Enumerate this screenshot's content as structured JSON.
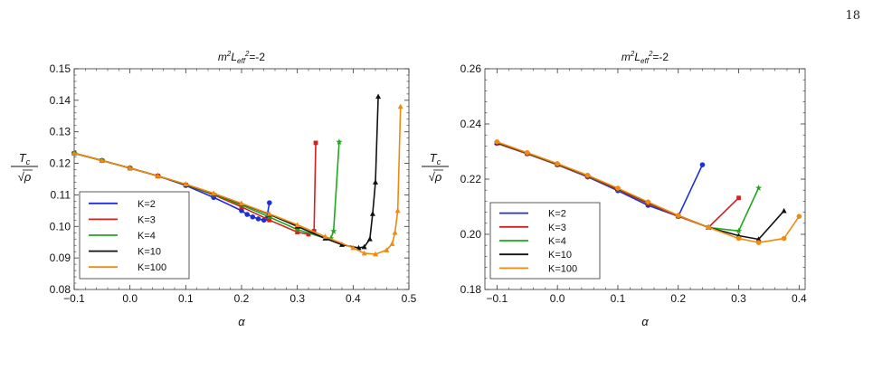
{
  "page": {
    "number": "18"
  },
  "chart_data": [
    {
      "type": "line",
      "title": "m²L_eff²=-2",
      "xlabel": "α",
      "ylabel": "Tc/√ρ",
      "xlim": [
        -0.1,
        0.5
      ],
      "ylim": [
        0.08,
        0.15
      ],
      "x_ticks": [
        -0.1,
        0.0,
        0.1,
        0.2,
        0.3,
        0.4,
        0.5
      ],
      "x_tick_labels": [
        "−0.1",
        "0.0",
        "0.1",
        "0.2",
        "0.3",
        "0.4",
        "0.5"
      ],
      "y_ticks": [
        0.08,
        0.09,
        0.1,
        0.11,
        0.12,
        0.13,
        0.14,
        0.15
      ],
      "y_tick_labels": [
        "0.08",
        "0.09",
        "0.10",
        "0.11",
        "0.12",
        "0.13",
        "0.14",
        "0.15"
      ],
      "grid": false,
      "legend_position": "bottom-left",
      "series": [
        {
          "name": "K=2",
          "color": "#1f2fd6",
          "marker": "circle",
          "points": [
            [
              -0.1,
              0.1232
            ],
            [
              -0.05,
              0.1209
            ],
            [
              0.0,
              0.1185
            ],
            [
              0.05,
              0.116
            ],
            [
              0.1,
              0.113
            ],
            [
              0.15,
              0.1092
            ],
            [
              0.2,
              0.105
            ],
            [
              0.21,
              0.1038
            ],
            [
              0.22,
              0.103
            ],
            [
              0.23,
              0.1024
            ],
            [
              0.24,
              0.102
            ],
            [
              0.245,
              0.1025
            ],
            [
              0.25,
              0.1075
            ]
          ]
        },
        {
          "name": "K=3",
          "color": "#d42020",
          "marker": "square",
          "points": [
            [
              -0.1,
              0.1232
            ],
            [
              -0.05,
              0.1209
            ],
            [
              0.0,
              0.1185
            ],
            [
              0.05,
              0.116
            ],
            [
              0.1,
              0.1132
            ],
            [
              0.15,
              0.11
            ],
            [
              0.2,
              0.1062
            ],
            [
              0.25,
              0.102
            ],
            [
              0.3,
              0.0982
            ],
            [
              0.32,
              0.0975
            ],
            [
              0.33,
              0.0985
            ],
            [
              0.333,
              0.1265
            ]
          ]
        },
        {
          "name": "K=4",
          "color": "#1fa81f",
          "marker": "star",
          "points": [
            [
              -0.1,
              0.1232
            ],
            [
              -0.05,
              0.1209
            ],
            [
              0.0,
              0.1185
            ],
            [
              0.05,
              0.116
            ],
            [
              0.1,
              0.1132
            ],
            [
              0.15,
              0.1102
            ],
            [
              0.2,
              0.1068
            ],
            [
              0.25,
              0.103
            ],
            [
              0.3,
              0.099
            ],
            [
              0.35,
              0.0963
            ],
            [
              0.36,
              0.0962
            ],
            [
              0.365,
              0.0985
            ],
            [
              0.375,
              0.1268
            ]
          ]
        },
        {
          "name": "K=10",
          "color": "#111111",
          "marker": "triangle",
          "points": [
            [
              -0.1,
              0.1232
            ],
            [
              -0.05,
              0.1209
            ],
            [
              0.0,
              0.1185
            ],
            [
              0.05,
              0.116
            ],
            [
              0.1,
              0.1133
            ],
            [
              0.15,
              0.1104
            ],
            [
              0.2,
              0.1072
            ],
            [
              0.25,
              0.1038
            ],
            [
              0.3,
              0.1
            ],
            [
              0.35,
              0.0962
            ],
            [
              0.38,
              0.0942
            ],
            [
              0.41,
              0.0932
            ],
            [
              0.42,
              0.0935
            ],
            [
              0.43,
              0.096
            ],
            [
              0.435,
              0.104
            ],
            [
              0.44,
              0.114
            ],
            [
              0.445,
              0.1412
            ]
          ]
        },
        {
          "name": "K=100",
          "color": "#f08a10",
          "marker": "triangle",
          "points": [
            [
              -0.1,
              0.1232
            ],
            [
              -0.05,
              0.1209
            ],
            [
              0.0,
              0.1185
            ],
            [
              0.05,
              0.116
            ],
            [
              0.1,
              0.1134
            ],
            [
              0.15,
              0.1105
            ],
            [
              0.2,
              0.1073
            ],
            [
              0.25,
              0.104
            ],
            [
              0.3,
              0.1005
            ],
            [
              0.35,
              0.0968
            ],
            [
              0.4,
              0.0932
            ],
            [
              0.42,
              0.0915
            ],
            [
              0.44,
              0.0912
            ],
            [
              0.46,
              0.0925
            ],
            [
              0.47,
              0.0945
            ],
            [
              0.475,
              0.098
            ],
            [
              0.48,
              0.105
            ],
            [
              0.485,
              0.138
            ]
          ]
        }
      ]
    },
    {
      "type": "line",
      "title": "m²L_eff²=-2",
      "xlabel": "α",
      "ylabel": "Tc/√ρ",
      "xlim": [
        -0.12,
        0.41
      ],
      "ylim": [
        0.18,
        0.26
      ],
      "x_ticks": [
        -0.1,
        0.0,
        0.1,
        0.2,
        0.3,
        0.4
      ],
      "x_tick_labels": [
        "−0.1",
        "0.0",
        "0.1",
        "0.2",
        "0.3",
        "0.4"
      ],
      "y_ticks": [
        0.18,
        0.2,
        0.22,
        0.24,
        0.26
      ],
      "y_tick_labels": [
        "0.18",
        "0.20",
        "0.22",
        "0.24",
        "0.26"
      ],
      "grid": false,
      "legend_position": "bottom-left",
      "series": [
        {
          "name": "K=2",
          "color": "#1f2fd6",
          "marker": "circle",
          "points": [
            [
              -0.1,
              0.233
            ],
            [
              -0.05,
              0.2292
            ],
            [
              0.0,
              0.2252
            ],
            [
              0.05,
              0.2208
            ],
            [
              0.1,
              0.2158
            ],
            [
              0.15,
              0.2105
            ],
            [
              0.2,
              0.2065
            ],
            [
              0.24,
              0.2252
            ]
          ]
        },
        {
          "name": "K=3",
          "color": "#d42020",
          "marker": "square",
          "points": [
            [
              -0.1,
              0.233
            ],
            [
              -0.05,
              0.2292
            ],
            [
              0.0,
              0.2252
            ],
            [
              0.05,
              0.221
            ],
            [
              0.1,
              0.2162
            ],
            [
              0.15,
              0.2112
            ],
            [
              0.2,
              0.2065
            ],
            [
              0.25,
              0.2025
            ],
            [
              0.3,
              0.2132
            ]
          ]
        },
        {
          "name": "K=4",
          "color": "#1fa81f",
          "marker": "star",
          "points": [
            [
              -0.1,
              0.2332
            ],
            [
              -0.05,
              0.2294
            ],
            [
              0.0,
              0.2254
            ],
            [
              0.05,
              0.2212
            ],
            [
              0.1,
              0.2165
            ],
            [
              0.15,
              0.2115
            ],
            [
              0.2,
              0.2068
            ],
            [
              0.25,
              0.2025
            ],
            [
              0.3,
              0.2012
            ],
            [
              0.333,
              0.2168
            ]
          ]
        },
        {
          "name": "K=10",
          "color": "#111111",
          "marker": "triangle",
          "points": [
            [
              -0.1,
              0.2333
            ],
            [
              -0.05,
              0.2295
            ],
            [
              0.0,
              0.2255
            ],
            [
              0.05,
              0.2213
            ],
            [
              0.1,
              0.2166
            ],
            [
              0.15,
              0.2116
            ],
            [
              0.2,
              0.2068
            ],
            [
              0.25,
              0.2025
            ],
            [
              0.3,
              0.1995
            ],
            [
              0.333,
              0.1982
            ],
            [
              0.375,
              0.2085
            ]
          ]
        },
        {
          "name": "K=100",
          "color": "#f08a10",
          "marker": "circle",
          "points": [
            [
              -0.1,
              0.2335
            ],
            [
              -0.05,
              0.2296
            ],
            [
              0.0,
              0.2256
            ],
            [
              0.05,
              0.2214
            ],
            [
              0.1,
              0.2167
            ],
            [
              0.15,
              0.2117
            ],
            [
              0.2,
              0.2068
            ],
            [
              0.25,
              0.2025
            ],
            [
              0.3,
              0.1985
            ],
            [
              0.333,
              0.197
            ],
            [
              0.375,
              0.1985
            ],
            [
              0.4,
              0.2065
            ]
          ]
        }
      ]
    }
  ]
}
